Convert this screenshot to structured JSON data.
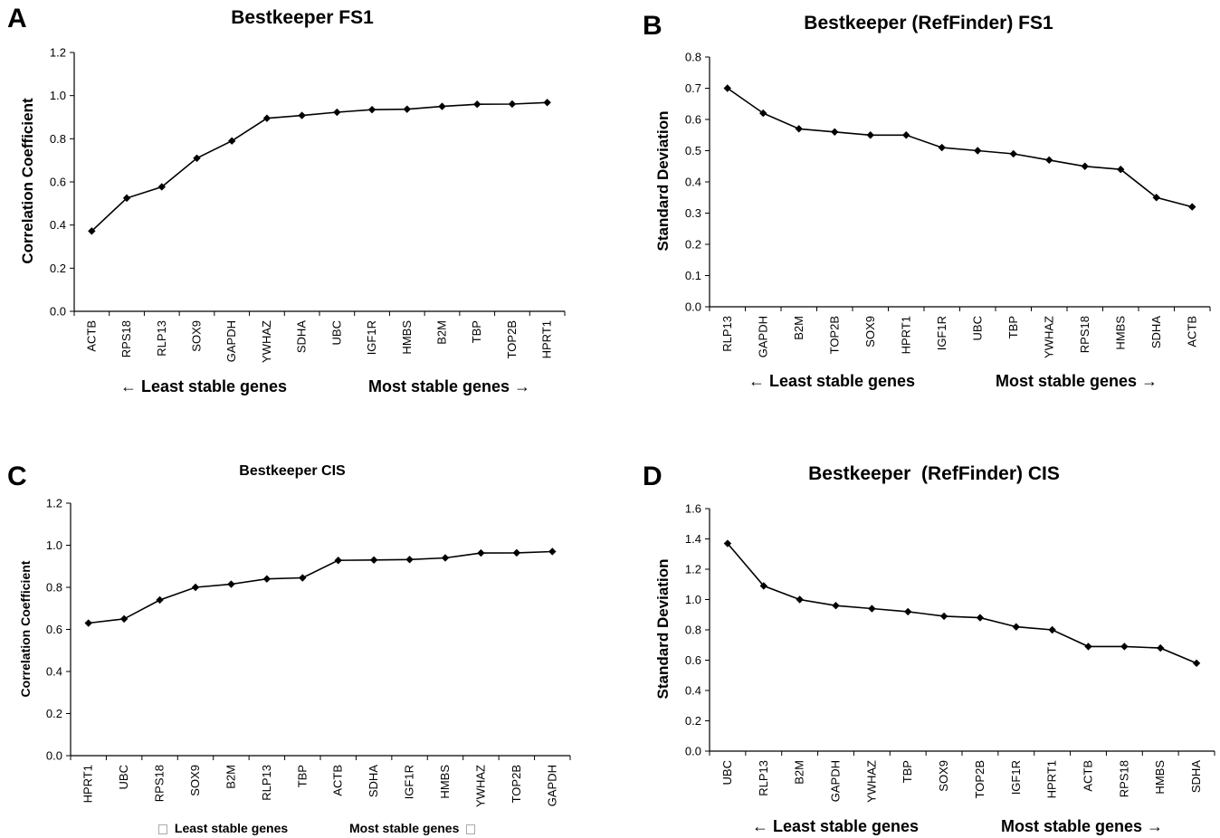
{
  "chart_data": [
    {
      "panel": "A",
      "type": "line",
      "title": "Bestkeeper FS1",
      "ylabel": "Correlation Coefficient",
      "xlabel": "",
      "ylim": [
        0,
        1.2
      ],
      "yticks": [
        "0.0",
        "0.2",
        "0.4",
        "0.6",
        "0.8",
        "1.0",
        "1.2"
      ],
      "categories": [
        "ACTB",
        "RPS18",
        "RLP13",
        "SOX9",
        "GAPDH",
        "YWHAZ",
        "SDHA",
        "UBC",
        "IGF1R",
        "HMBS",
        "B2M",
        "TBP",
        "TOP2B",
        "HPRT1"
      ],
      "values": [
        0.372,
        0.525,
        0.577,
        0.71,
        0.79,
        0.895,
        0.908,
        0.923,
        0.935,
        0.937,
        0.95,
        0.96,
        0.961,
        0.968
      ],
      "footer_left": "← Least stable genes",
      "footer_right": "Most stable genes →",
      "grid": false
    },
    {
      "panel": "B",
      "type": "line",
      "title": "Bestkeeper (RefFinder) FS1",
      "ylabel": "Standard Deviation",
      "xlabel": "",
      "ylim": [
        0,
        0.8
      ],
      "yticks": [
        "0.0",
        "0.1",
        "0.2",
        "0.3",
        "0.4",
        "0.5",
        "0.6",
        "0.7",
        "0.8"
      ],
      "categories": [
        "RLP13",
        "GAPDH",
        "B2M",
        "TOP2B",
        "SOX9",
        "HPRT1",
        "IGF1R",
        "UBC",
        "TBP",
        "YWHAZ",
        "RPS18",
        "HMBS",
        "SDHA",
        "ACTB"
      ],
      "values": [
        0.7,
        0.62,
        0.57,
        0.56,
        0.55,
        0.55,
        0.51,
        0.5,
        0.49,
        0.47,
        0.45,
        0.44,
        0.35,
        0.32
      ],
      "footer_left": "← Least stable genes",
      "footer_right": "Most stable genes →",
      "grid": false
    },
    {
      "panel": "C",
      "type": "line",
      "title": "Bestkeeper CIS",
      "ylabel": "Correlation Coefficient",
      "xlabel": "",
      "ylim": [
        0,
        1.2
      ],
      "yticks": [
        "0.0",
        "0.2",
        "0.4",
        "0.6",
        "0.8",
        "1.0",
        "1.2"
      ],
      "categories": [
        "HPRT1",
        "UBC",
        "RPS18",
        "SOX9",
        "B2M",
        "RLP13",
        "TBP",
        "ACTB",
        "SDHA",
        "IGF1R",
        "HMBS",
        "YWHAZ",
        "TOP2B",
        "GAPDH"
      ],
      "values": [
        0.63,
        0.65,
        0.74,
        0.8,
        0.815,
        0.84,
        0.845,
        0.928,
        0.93,
        0.932,
        0.94,
        0.963,
        0.964,
        0.97
      ],
      "footer_left": "Least stable genes",
      "footer_right": "Most stable genes",
      "grid": false
    },
    {
      "panel": "D",
      "type": "line",
      "title": "Bestkeeper  (RefFinder) CIS",
      "ylabel": "Standard Deviation",
      "xlabel": "",
      "ylim": [
        0,
        1.6
      ],
      "yticks": [
        "0.0",
        "0.2",
        "0.4",
        "0.6",
        "0.8",
        "1.0",
        "1.2",
        "1.4",
        "1.6"
      ],
      "categories": [
        "UBC",
        "RLP13",
        "B2M",
        "GAPDH",
        "YWHAZ",
        "TBP",
        "SOX9",
        "TOP2B",
        "IGF1R",
        "HPRT1",
        "ACTB",
        "RPS18",
        "HMBS",
        "SDHA"
      ],
      "values": [
        1.37,
        1.09,
        1.0,
        0.96,
        0.94,
        0.92,
        0.89,
        0.88,
        0.82,
        0.8,
        0.69,
        0.69,
        0.68,
        0.58
      ],
      "footer_left": "← Least stable genes",
      "footer_right": "Most stable genes →",
      "grid": false
    }
  ]
}
